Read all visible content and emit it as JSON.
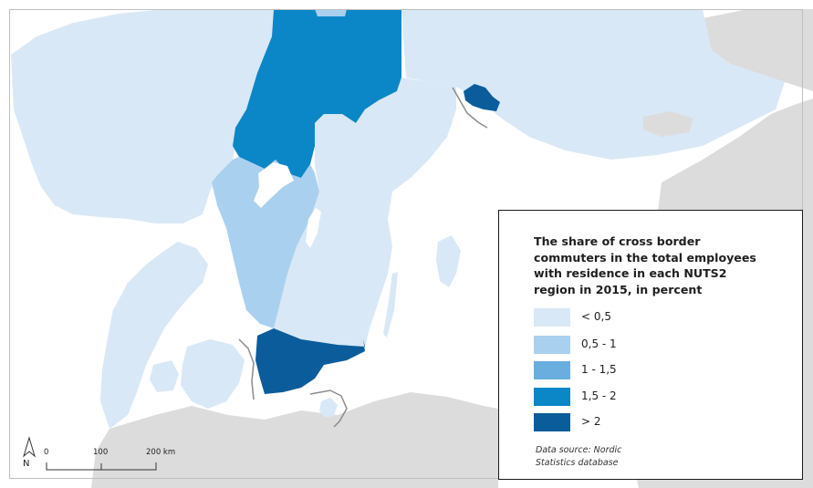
{
  "legend": {
    "title": "The share of cross border\ncommuters in the total employees\nwith residence in each NUTS2\nregion in 2015, in percent",
    "items": [
      {
        "label": "< 0,5",
        "color": "#d8e8f6"
      },
      {
        "label": "0,5 - 1",
        "color": "#a9d0ef"
      },
      {
        "label": "1 - 1,5",
        "color": "#6aaedf"
      },
      {
        "label": "1,5 - 2",
        "color": "#0b86c6"
      },
      {
        "label": "> 2",
        "color": "#0b5c9a"
      }
    ],
    "source": "Data source: Nordic\nStatistics database"
  },
  "scale": {
    "ticks": [
      "0",
      "100",
      "200 km"
    ]
  },
  "north": "N",
  "colors": {
    "sea": "#ffffff",
    "land_other": "#dcdcdc",
    "border": "#ffffff",
    "maritime_boundary": "#8c8c8c"
  }
}
